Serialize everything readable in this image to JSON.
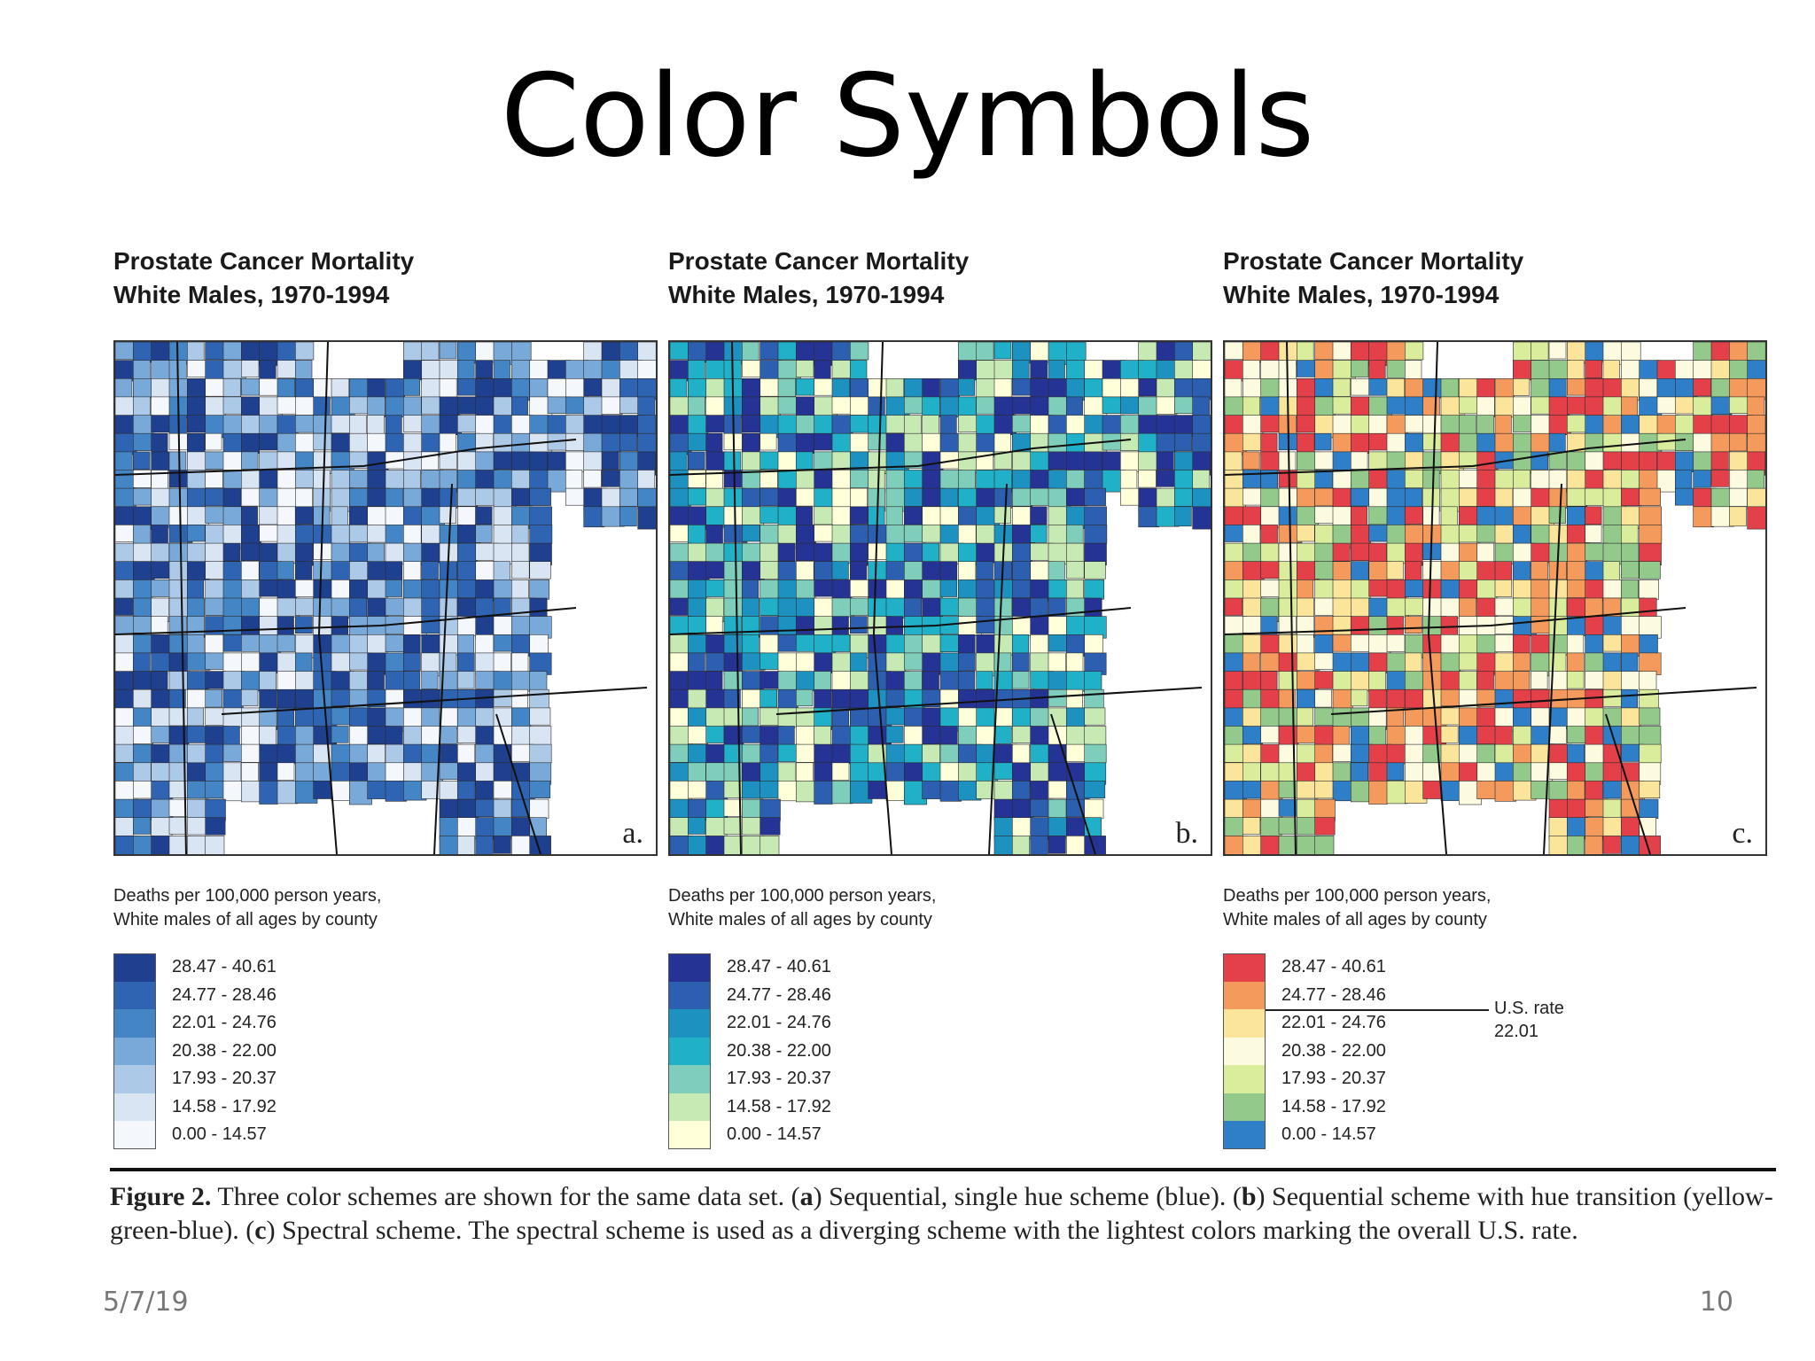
{
  "slide": {
    "title": "Color Symbols",
    "date": "5/7/19",
    "page_number": "10"
  },
  "panels": [
    {
      "title_line1": "Prostate Cancer Mortality",
      "title_line2": "White Males, 1970-1994",
      "letter": "a.",
      "legend_line1": "Deaths per 100,000 person years,",
      "legend_line2": "White males of all ages by county",
      "scheme": "sequential-blue",
      "colors": [
        "#1f3f8f",
        "#2f64b3",
        "#4485c6",
        "#79a9d8",
        "#acc9e8",
        "#d9e5f3",
        "#f4f7fb"
      ]
    },
    {
      "title_line1": "Prostate Cancer Mortality",
      "title_line2": "White Males, 1970-1994",
      "letter": "b.",
      "legend_line1": "Deaths per 100,000 person years,",
      "legend_line2": "White males of all ages by county",
      "scheme": "yellow-green-blue",
      "colors": [
        "#253494",
        "#2c5fb0",
        "#1d91c0",
        "#20b0c8",
        "#7fcdbb",
        "#c7e9b4",
        "#ffffd9"
      ]
    },
    {
      "title_line1": "Prostate Cancer Mortality",
      "title_line2": "White Males, 1970-1994",
      "letter": "c.",
      "legend_line1": "Deaths per 100,000 person years,",
      "legend_line2": "White males of all ages by county",
      "scheme": "spectral-diverging",
      "colors": [
        "#e4404a",
        "#f49a5c",
        "#fbe59a",
        "#fcfbe0",
        "#d9ed9c",
        "#93c98b",
        "#2f7fc8"
      ],
      "us_rate_line1": "U.S. rate",
      "us_rate_line2": "22.01"
    }
  ],
  "legend_ranges": [
    "28.47 - 40.61",
    "24.77 - 28.46",
    "22.01 - 24.76",
    "20.38 - 22.00",
    "17.93 - 20.37",
    "14.58 - 17.92",
    "0.00 - 14.57"
  ],
  "caption": {
    "figure_label": "Figure 2.",
    "part1": " Three color schemes are shown for the same data set. (",
    "a": "a",
    "part2": ") Sequential, single hue scheme (blue). (",
    "b": "b",
    "part3": ") Sequential scheme with hue transition (yellow-green-blue). (",
    "c": "c",
    "part4": ") Spectral scheme. The spectral scheme is used as a diverging scheme with the lightest colors marking the overall U.S. rate."
  }
}
